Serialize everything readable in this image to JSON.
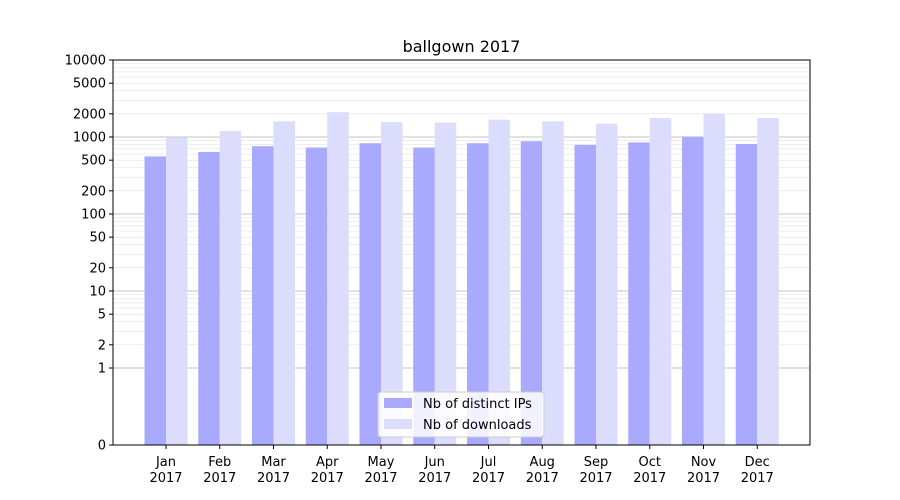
{
  "chart_data": {
    "type": "bar",
    "title": "ballgown 2017",
    "xlabel": "",
    "ylabel": "",
    "yscale": "symlog",
    "ylim": [
      0,
      10000
    ],
    "yticks": [
      0,
      1,
      2,
      5,
      10,
      20,
      50,
      100,
      200,
      500,
      1000,
      2000,
      5000,
      10000
    ],
    "grid": true,
    "legend_position": "lower-center",
    "categories": [
      "Jan\n2017",
      "Feb\n2017",
      "Mar\n2017",
      "Apr\n2017",
      "May\n2017",
      "Jun\n2017",
      "Jul\n2017",
      "Aug\n2017",
      "Sep\n2017",
      "Oct\n2017",
      "Nov\n2017",
      "Dec\n2017"
    ],
    "series": [
      {
        "name": "Nb of distinct IPs",
        "color": "#a9a9fd",
        "values": [
          560,
          640,
          760,
          730,
          830,
          730,
          830,
          880,
          790,
          850,
          1010,
          810
        ]
      },
      {
        "name": "Nb of downloads",
        "color": "#dcdcfd",
        "values": [
          990,
          1190,
          1600,
          2100,
          1560,
          1540,
          1680,
          1600,
          1490,
          1760,
          1990,
          1760
        ]
      }
    ]
  }
}
